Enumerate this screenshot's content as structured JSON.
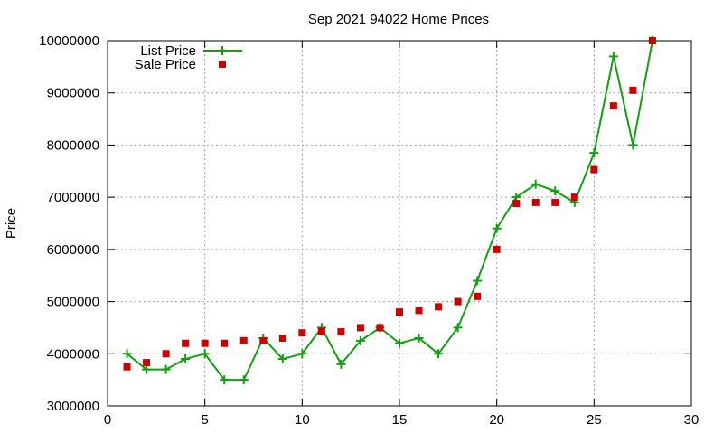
{
  "chart_data": {
    "type": "line",
    "title": "Sep 2021 94022 Home Prices",
    "xlabel": "",
    "ylabel": "Price",
    "xlim": [
      0,
      30
    ],
    "ylim": [
      3000000,
      10000000
    ],
    "xticks": [
      0,
      5,
      10,
      15,
      20,
      25,
      30
    ],
    "yticks": [
      3000000,
      4000000,
      5000000,
      6000000,
      7000000,
      8000000,
      9000000,
      10000000
    ],
    "xtick_labels": [
      "0",
      "5",
      "10",
      "15",
      "20",
      "25",
      "30"
    ],
    "ytick_labels": [
      "3000000",
      "4000000",
      "5000000",
      "6000000",
      "7000000",
      "8000000",
      "9000000",
      "10000000"
    ],
    "grid": true,
    "legend_position": "top-left",
    "series": [
      {
        "name": "List Price",
        "style": "line+plus",
        "color": "#10a010",
        "x": [
          1,
          2,
          3,
          4,
          5,
          6,
          7,
          8,
          9,
          10,
          11,
          12,
          13,
          14,
          15,
          16,
          17,
          18,
          19,
          20,
          21,
          22,
          23,
          24,
          25,
          26,
          27,
          28
        ],
        "y": [
          4000000,
          3700000,
          3700000,
          3900000,
          4000000,
          3500000,
          3500000,
          4300000,
          3900000,
          4000000,
          4500000,
          3800000,
          4250000,
          4500000,
          4200000,
          4300000,
          4000000,
          4500000,
          5400000,
          6400000,
          7000000,
          7250000,
          7120000,
          6900000,
          7850000,
          9700000,
          8000000,
          10000000
        ]
      },
      {
        "name": "Sale Price",
        "style": "square-markers",
        "color": "#cc0000",
        "x": [
          1,
          2,
          3,
          4,
          5,
          6,
          7,
          8,
          9,
          10,
          11,
          12,
          13,
          14,
          15,
          16,
          17,
          18,
          19,
          20,
          21,
          22,
          23,
          24,
          25,
          26,
          27,
          28
        ],
        "y": [
          3750000,
          3830000,
          4000000,
          4200000,
          4200000,
          4200000,
          4250000,
          4250000,
          4300000,
          4400000,
          4430000,
          4420000,
          4500000,
          4500000,
          4800000,
          4830000,
          4900000,
          5000000,
          5100000,
          6000000,
          6880000,
          6900000,
          6900000,
          7000000,
          7530000,
          8750000,
          9050000,
          10000000
        ]
      }
    ]
  }
}
